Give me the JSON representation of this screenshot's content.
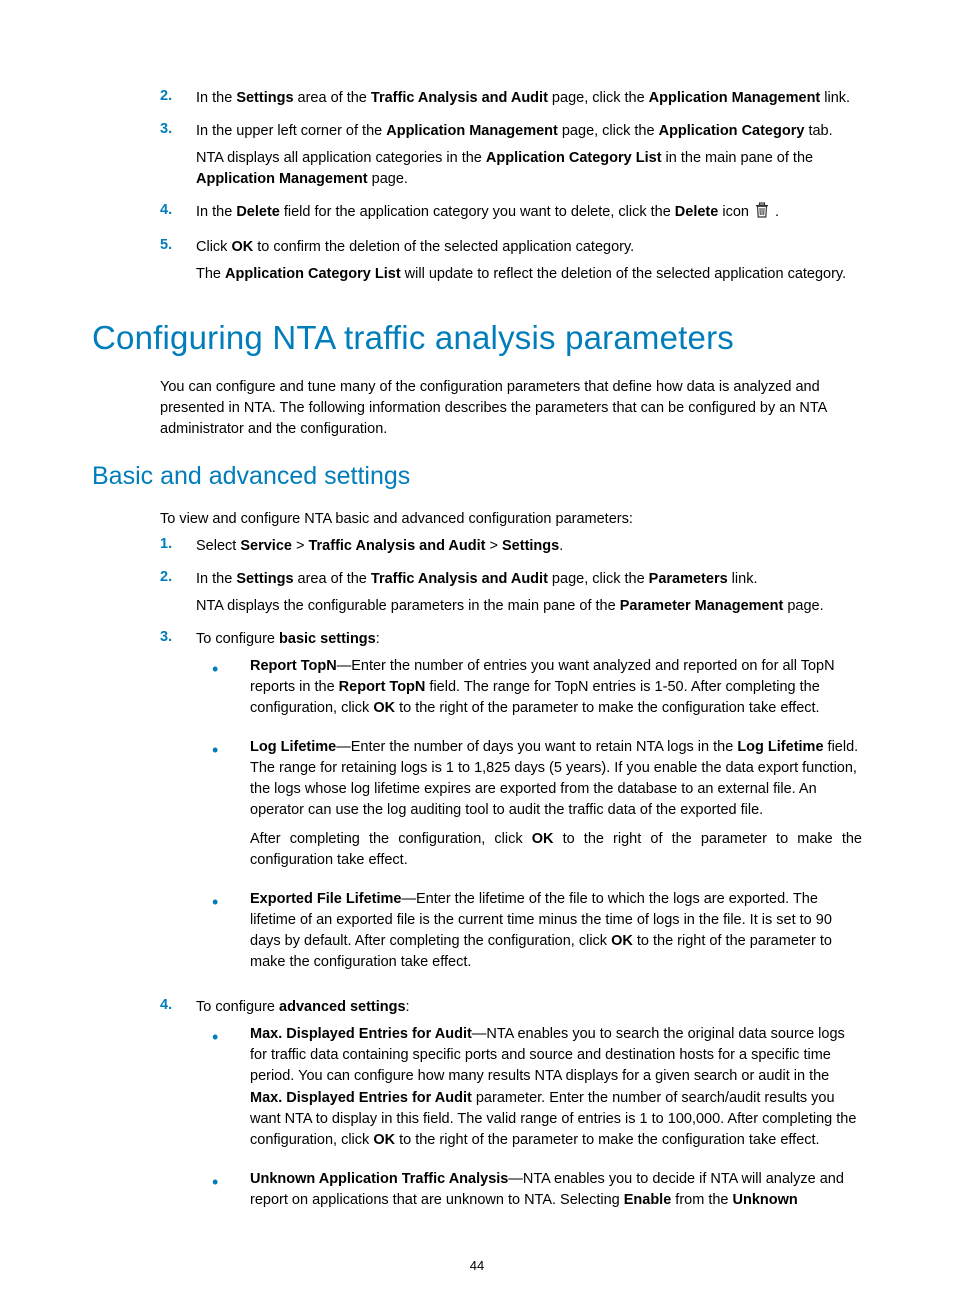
{
  "colors": {
    "accent": "#007dba",
    "text": "#000000",
    "background": "#ffffff",
    "icon": "#333333"
  },
  "typography": {
    "body_font": "Arial",
    "body_size_pt": 11,
    "h1_size_pt": 25,
    "h2_size_pt": 19,
    "h1_weight": 300,
    "h2_weight": 300
  },
  "topSteps": [
    {
      "n": "2.",
      "lines": [
        "In the <b>Settings</b> area of the <b>Traffic Analysis and Audit</b> page, click the <b>Application Management</b> link."
      ]
    },
    {
      "n": "3.",
      "lines": [
        "In the upper left corner of the <b>Application Management</b> page, click the <b>Application Category</b> tab.",
        "NTA displays all application categories in the <b>Application Category List</b> in the main pane of the <b>Application Management</b> page."
      ]
    },
    {
      "n": "4.",
      "lines": [
        "In the <b>Delete</b> field for the application category you want to delete, click the <b>Delete</b> icon {{TRASH}} ."
      ]
    },
    {
      "n": "5.",
      "lines": [
        "Click <b>OK</b> to confirm the deletion of the selected application category.",
        "The <b>Application Category List</b> will update to reflect the deletion of the selected application category."
      ]
    }
  ],
  "h1": "Configuring NTA traffic analysis parameters",
  "introPara": "You can configure and tune many of the configuration parameters that define how data is analyzed and presented in NTA. The following information describes the parameters that can be configured by an NTA administrator and the configuration.",
  "h2": "Basic and advanced settings",
  "leadPara": "To view and configure NTA basic and advanced configuration parameters:",
  "mainSteps": [
    {
      "n": "1.",
      "lines": [
        "Select <b>Service</b> > <b>Traffic Analysis and Audit</b> > <b>Settings</b>."
      ]
    },
    {
      "n": "2.",
      "lines": [
        "In the <b>Settings</b> area of the <b>Traffic Analysis and Audit</b> page, click the <b>Parameters</b> link.",
        "NTA displays the configurable parameters in the main pane of the <b>Parameter Management</b> page."
      ]
    },
    {
      "n": "3.",
      "lines": [
        "To configure <b>basic settings</b>:"
      ],
      "bullets": [
        {
          "paras": [
            "<b>Report TopN</b>—Enter the number of entries you want analyzed and reported on for all TopN reports in the <b>Report TopN</b> field. The range for TopN entries is 1-50. After completing the configuration, click <b>OK</b> to the right of the parameter to make the configuration take effect."
          ]
        },
        {
          "paras": [
            "<b>Log Lifetime</b>—Enter the number of days you want to retain NTA logs in the <b>Log Lifetime</b> field. The range for retaining logs is 1 to 1,825 days (5 years). If you enable the data export function, the logs whose log lifetime expires are exported from the database to an external file. An operator can use the log auditing tool to audit the traffic data of the exported file.",
            "After completing the configuration, click <b>OK</b> to the right of the parameter to make the configuration take effect."
          ],
          "justify_second": true
        },
        {
          "paras": [
            "<b>Exported File Lifetime</b>—Enter the lifetime of the file to which the logs are exported. The lifetime of an exported file is the current time minus the time of logs in the file. It is set to 90 days by default. After completing the configuration, click <b>OK</b> to the right of the parameter to make the configuration take effect."
          ]
        }
      ]
    },
    {
      "n": "4.",
      "lines": [
        "To configure <b>advanced settings</b>:"
      ],
      "bullets": [
        {
          "paras": [
            "<b>Max. Displayed Entries for Audit</b>—NTA enables you to search the original data source logs for traffic data containing specific ports and source and destination hosts for a specific time period. You can configure how many results NTA displays for a given search or audit in the <b>Max. Displayed Entries for Audit</b> parameter. Enter the number of search/audit results you want NTA to display in this field. The valid range of entries is 1 to 100,000. After completing the configuration, click <b>OK</b> to the right of the parameter to make the configuration take effect."
          ]
        },
        {
          "paras": [
            "<b>Unknown Application Traffic Analysis</b>—NTA enables you to decide if NTA will analyze and report on applications that are unknown to NTA. Selecting <b>Enable</b> from the <b>Unknown</b>"
          ]
        }
      ]
    }
  ],
  "pageNumber": "44"
}
